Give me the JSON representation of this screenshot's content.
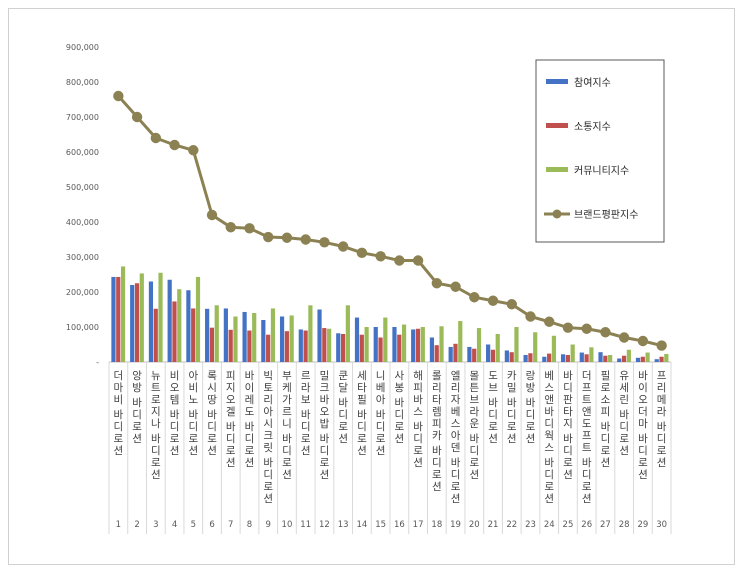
{
  "chart_data": {
    "type": "bar",
    "title": "",
    "xlabel": "",
    "ylabel": "",
    "ylim": [
      0,
      900000
    ],
    "yticks": [
      "-",
      "100,000",
      "200,000",
      "300,000",
      "400,000",
      "500,000",
      "600,000",
      "700,000",
      "800,000",
      "900,000"
    ],
    "legend_position": "top-right",
    "grid": false,
    "indices": [
      "1",
      "2",
      "3",
      "4",
      "5",
      "6",
      "7",
      "8",
      "9",
      "10",
      "11",
      "12",
      "13",
      "14",
      "15",
      "16",
      "17",
      "18",
      "19",
      "20",
      "21",
      "22",
      "23",
      "24",
      "25",
      "26",
      "27",
      "28",
      "29",
      "30"
    ],
    "categories": [
      "더마비 바디로션",
      "앙방 바디로션",
      "뉴트로지나 바디로션",
      "비오템 바디로션",
      "아비노 바디로션",
      "록시땅 바디로션",
      "피지오겔 바디로션",
      "바이레도 바디로션",
      "빅토리아시크릿 바디로션",
      "부케가르니 바디로션",
      "르라보 바디로션",
      "밀크바오밥 바디로션",
      "쿤달 바디로션",
      "세타필 바디로션",
      "니베아 바디로션",
      "사봉 바디로션",
      "해피바스 바디로션",
      "롤리타렘피카 바디로션",
      "엘리자베스아덴 바디로션",
      "몰튼브라운 바디로션",
      "도브 바디로션",
      "카밀 바디로션",
      "랑방 바디로션",
      "베스앤바디웍스 바디로션",
      "바디판타지 바디로션",
      "더프트앤도프트 바디로션",
      "필로소피 바디로션",
      "유세린 바디로션",
      "바이오더마 바디로션",
      "프리메라 바디로션"
    ],
    "series": [
      {
        "name": "참여지수",
        "color": "#4472C4",
        "values": [
          243000,
          220000,
          230000,
          235000,
          205000,
          152000,
          153000,
          143000,
          120000,
          130000,
          93000,
          150000,
          82000,
          127000,
          100000,
          100000,
          93000,
          70000,
          43000,
          43000,
          50000,
          33000,
          20000,
          15000,
          22000,
          27000,
          28000,
          10000,
          12000,
          8000
        ]
      },
      {
        "name": "소통지수",
        "color": "#C0504D",
        "values": [
          243000,
          225000,
          152000,
          173000,
          153000,
          98000,
          92000,
          90000,
          78000,
          88000,
          90000,
          97000,
          80000,
          78000,
          70000,
          78000,
          95000,
          48000,
          52000,
          38000,
          35000,
          28000,
          25000,
          24000,
          20000,
          22000,
          18000,
          18000,
          15000,
          15000
        ]
      },
      {
        "name": "커뮤니티지수",
        "color": "#9BBB59",
        "values": [
          273000,
          253000,
          255000,
          208000,
          243000,
          162000,
          130000,
          140000,
          153000,
          133000,
          162000,
          95000,
          162000,
          100000,
          127000,
          107000,
          100000,
          102000,
          117000,
          97000,
          80000,
          100000,
          85000,
          75000,
          50000,
          42000,
          20000,
          35000,
          27000,
          23000
        ]
      }
    ],
    "line": {
      "name": "브랜드평판지수",
      "color": "#8B8152",
      "values": [
        760000,
        700000,
        640000,
        620000,
        605000,
        420000,
        385000,
        382000,
        357000,
        355000,
        350000,
        342000,
        330000,
        312000,
        302000,
        290000,
        290000,
        225000,
        215000,
        185000,
        175000,
        165000,
        130000,
        115000,
        98000,
        95000,
        85000,
        70000,
        60000,
        47000
      ]
    }
  }
}
